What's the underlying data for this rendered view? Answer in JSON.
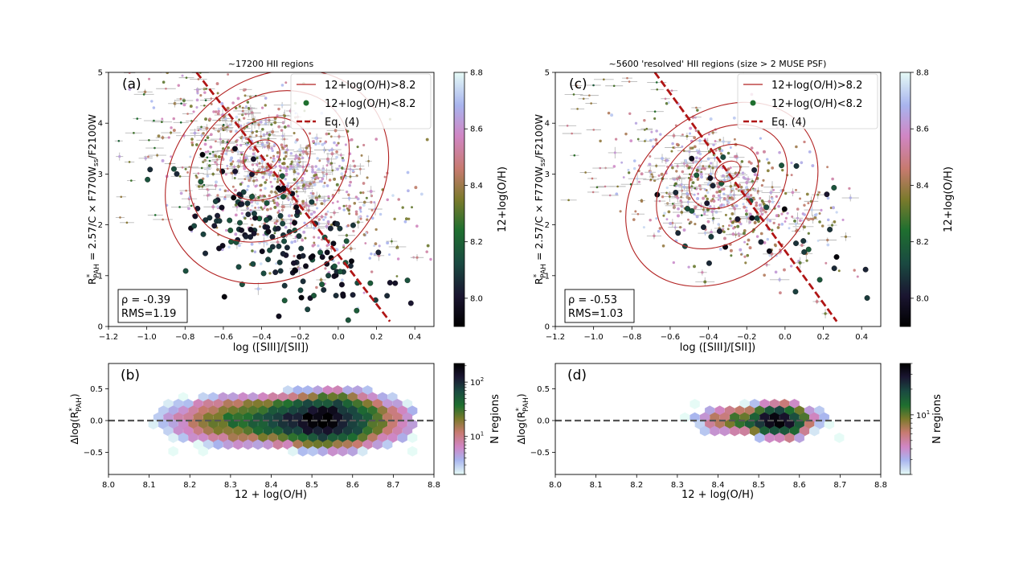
{
  "colors": {
    "contour": "#b22222",
    "eq_line": "#b01515",
    "ref_line": "#555555",
    "axis": "#000000",
    "error_bar": "#b9b9b9"
  },
  "chart_data": [
    {
      "id": "a",
      "type": "scatter",
      "panel_label": "(a)",
      "title": "~17200 HII regions",
      "xlabel": "log ([SIII]/[SII])",
      "ylabel_prefix": "R",
      "ylabel_sup": "*",
      "ylabel_sub": "PAH",
      "ylabel_rest": " = 2.57/C × F770W",
      "ylabel_sub2": "ss",
      "ylabel_tail": "/F2100W",
      "xlim": [
        -1.2,
        0.5
      ],
      "ylim": [
        0,
        5
      ],
      "xticks": [
        -1.2,
        -1.0,
        -0.8,
        -0.6,
        -0.4,
        -0.2,
        0.0,
        0.2,
        0.4
      ],
      "xtick_labels": [
        "−1.2",
        "−1.0",
        "−0.8",
        "−0.6",
        "−0.4",
        "−0.2",
        "0.0",
        "0.2",
        "0.4"
      ],
      "yticks": [
        0,
        1,
        2,
        3,
        4,
        5
      ],
      "ytick_labels": [
        "0",
        "1",
        "2",
        "3",
        "4",
        "5"
      ],
      "legend": [
        "12+log(O/H)>8.2",
        "12+log(O/H)<8.2",
        "Eq. (4)"
      ],
      "stats": [
        "ρ = -0.39",
        "RMS=1.19"
      ],
      "eq_line": {
        "x": [
          -0.74,
          0.27
        ],
        "y": [
          5.0,
          0.1
        ]
      },
      "contours": [
        {
          "level": "outer",
          "cx": -0.32,
          "cy": 2.95,
          "rx": 0.62,
          "ry": 1.95,
          "angle": -38
        },
        {
          "level": "mid",
          "cx": -0.36,
          "cy": 3.15,
          "rx": 0.45,
          "ry": 1.35,
          "angle": -38
        },
        {
          "level": "inner",
          "cx": -0.38,
          "cy": 3.3,
          "rx": 0.25,
          "ry": 0.75,
          "angle": -35
        },
        {
          "level": "core",
          "cx": -0.4,
          "cy": 3.35,
          "rx": 0.1,
          "ry": 0.3,
          "angle": -30
        }
      ],
      "cloud": {
        "cx": -0.3,
        "cy": 3.0,
        "sx": 0.28,
        "sy": 0.75,
        "n": 900,
        "slope": -2.0
      },
      "low_z": {
        "cx": -0.28,
        "cy": 1.6,
        "sx": 0.28,
        "sy": 0.55,
        "n": 170,
        "slope": -2.8
      },
      "seed": 11
    },
    {
      "id": "c",
      "type": "scatter",
      "panel_label": "(c)",
      "title": "~5600 'resolved' HII regions (size > 2 MUSE PSF)",
      "xlabel": "log ([SIII]/[SII])",
      "ylabel_prefix": "R",
      "ylabel_sup": "*",
      "ylabel_sub": "PAH",
      "ylabel_rest": " = 2.57/C × F770W",
      "ylabel_sub2": "ss",
      "ylabel_tail": "/F2100W",
      "xlim": [
        -1.2,
        0.5
      ],
      "ylim": [
        0,
        5
      ],
      "xticks": [
        -1.2,
        -1.0,
        -0.8,
        -0.6,
        -0.4,
        -0.2,
        0.0,
        0.2,
        0.4
      ],
      "xtick_labels": [
        "−1.2",
        "−1.0",
        "−0.8",
        "−0.6",
        "−0.4",
        "−0.2",
        "0.0",
        "0.2",
        "0.4"
      ],
      "yticks": [
        0,
        1,
        2,
        3,
        4,
        5
      ],
      "ytick_labels": [
        "0",
        "1",
        "2",
        "3",
        "4",
        "5"
      ],
      "legend": [
        "12+log(O/H)>8.2",
        "12+log(O/H)<8.2",
        "Eq. (4)"
      ],
      "stats": [
        "ρ = -0.53",
        "RMS=1.03"
      ],
      "eq_line": {
        "x": [
          -0.68,
          0.27
        ],
        "y": [
          5.0,
          0.1
        ]
      },
      "contours": [
        {
          "level": "outer",
          "cx": -0.33,
          "cy": 2.6,
          "rx": 0.55,
          "ry": 1.6,
          "angle": -40
        },
        {
          "level": "mid",
          "cx": -0.33,
          "cy": 2.75,
          "rx": 0.38,
          "ry": 1.05,
          "angle": -40
        },
        {
          "level": "inner",
          "cx": -0.32,
          "cy": 2.95,
          "rx": 0.2,
          "ry": 0.55,
          "angle": -38
        },
        {
          "level": "core",
          "cx": -0.3,
          "cy": 3.05,
          "rx": 0.07,
          "ry": 0.18,
          "angle": -30
        }
      ],
      "cloud": {
        "cx": -0.3,
        "cy": 2.6,
        "sx": 0.26,
        "sy": 0.62,
        "n": 600,
        "slope": -2.0
      },
      "low_z": {
        "cx": -0.15,
        "cy": 2.0,
        "sx": 0.3,
        "sy": 0.7,
        "n": 45,
        "slope": -2.5
      },
      "seed": 29
    },
    {
      "id": "b",
      "type": "hexbin",
      "panel_label": "(b)",
      "xlabel": "12 + log(O/H)",
      "ylabel": "Δlog(R*PAH)",
      "xlim": [
        8.0,
        8.8
      ],
      "ylim": [
        -0.85,
        0.9
      ],
      "xticks": [
        8.0,
        8.1,
        8.2,
        8.3,
        8.4,
        8.5,
        8.6,
        8.7,
        8.8
      ],
      "xtick_labels": [
        "8.0",
        "8.1",
        "8.2",
        "8.3",
        "8.4",
        "8.5",
        "8.6",
        "8.7",
        "8.8"
      ],
      "yticks": [
        -0.5,
        0.0,
        0.5
      ],
      "ytick_labels": [
        "−0.5",
        "0.0",
        "0.5"
      ],
      "ref_line_y": 0.0,
      "density": {
        "x_range": [
          8.06,
          8.75
        ],
        "peak_x": 8.53,
        "peak_sx": 0.055,
        "broad_x": 8.45,
        "broad_sx": 0.13,
        "sy": 0.17,
        "peak": 220
      },
      "seed": 41
    },
    {
      "id": "d",
      "type": "hexbin",
      "panel_label": "(d)",
      "xlabel": "12 + log(O/H)",
      "ylabel": "Δlog(R*PAH)",
      "xlim": [
        8.0,
        8.8
      ],
      "ylim": [
        -0.85,
        0.9
      ],
      "xticks": [
        8.0,
        8.1,
        8.2,
        8.3,
        8.4,
        8.5,
        8.6,
        8.7,
        8.8
      ],
      "xtick_labels": [
        "8.0",
        "8.1",
        "8.2",
        "8.3",
        "8.4",
        "8.5",
        "8.6",
        "8.7",
        "8.8"
      ],
      "yticks": [
        -0.5,
        0.0,
        0.5
      ],
      "ytick_labels": [
        "−0.5",
        "0.0",
        "0.5"
      ],
      "ref_line_y": 0.0,
      "density": {
        "x_range": [
          8.2,
          8.72
        ],
        "peak_x": 8.55,
        "peak_sx": 0.035,
        "broad_x": 8.5,
        "broad_sx": 0.09,
        "sy": 0.13,
        "peak": 40
      },
      "seed": 53
    }
  ],
  "colorbars": [
    {
      "for": "a",
      "label": "12+log(O/H)",
      "range": [
        7.9,
        8.8
      ],
      "ticks": [
        8.0,
        8.2,
        8.4,
        8.6,
        8.8
      ],
      "tick_labels": [
        "8.0",
        "8.2",
        "8.4",
        "8.6",
        "8.8"
      ],
      "scale": "linear"
    },
    {
      "for": "c",
      "label": "12+log(O/H)",
      "range": [
        7.9,
        8.8
      ],
      "ticks": [
        8.0,
        8.2,
        8.4,
        8.6,
        8.8
      ],
      "tick_labels": [
        "8.0",
        "8.2",
        "8.4",
        "8.6",
        "8.8"
      ],
      "scale": "linear"
    },
    {
      "for": "b",
      "label": "N regions",
      "range": [
        2,
        220
      ],
      "ticks": [
        10,
        100
      ],
      "tick_base": "10",
      "tick_exps": [
        "1",
        "2"
      ],
      "scale": "log"
    },
    {
      "for": "d",
      "label": "N regions",
      "range": [
        2,
        40
      ],
      "ticks": [
        10
      ],
      "tick_base": "10",
      "tick_exps": [
        "1"
      ],
      "scale": "log"
    }
  ]
}
